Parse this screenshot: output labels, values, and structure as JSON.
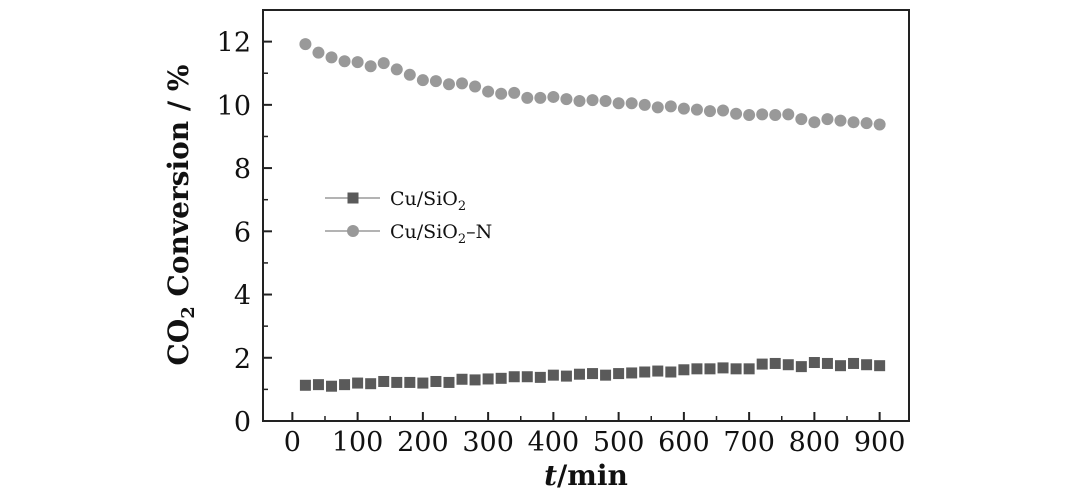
{
  "chart_data": {
    "type": "scatter",
    "title": "",
    "xlabel": {
      "italic": "t",
      "rest": "/min"
    },
    "ylabel": {
      "pre": "CO",
      "sub": "2",
      "post": " Conversion / %"
    },
    "xlim": [
      -45,
      945
    ],
    "ylim": [
      0,
      13
    ],
    "xticks": [
      0,
      100,
      200,
      300,
      400,
      500,
      600,
      700,
      800,
      900
    ],
    "yticks": [
      0,
      2,
      4,
      6,
      8,
      10,
      12
    ],
    "grid": false,
    "legend_position": "center-left",
    "series": [
      {
        "name": {
          "pre": "Cu/SiO",
          "sub": "2",
          "post": ""
        },
        "marker": "square",
        "color": "#5a5a5a",
        "line_color": "#9a9a9a",
        "x": [
          20,
          40,
          60,
          80,
          100,
          120,
          140,
          160,
          180,
          200,
          220,
          240,
          260,
          280,
          300,
          320,
          340,
          360,
          380,
          400,
          420,
          440,
          460,
          480,
          500,
          520,
          540,
          560,
          580,
          600,
          620,
          640,
          660,
          680,
          700,
          720,
          740,
          760,
          780,
          800,
          820,
          840,
          860,
          880,
          900
        ],
        "y": [
          1.13,
          1.15,
          1.1,
          1.15,
          1.2,
          1.18,
          1.25,
          1.22,
          1.22,
          1.2,
          1.25,
          1.22,
          1.32,
          1.3,
          1.33,
          1.35,
          1.4,
          1.4,
          1.38,
          1.45,
          1.42,
          1.48,
          1.5,
          1.45,
          1.5,
          1.52,
          1.55,
          1.58,
          1.55,
          1.62,
          1.65,
          1.65,
          1.68,
          1.65,
          1.65,
          1.8,
          1.82,
          1.78,
          1.72,
          1.85,
          1.82,
          1.75,
          1.82,
          1.78,
          1.75
        ]
      },
      {
        "name": {
          "pre": "Cu/SiO",
          "sub": "2",
          "post": "–N"
        },
        "marker": "circle",
        "color": "#999999",
        "line_color": "#9a9a9a",
        "x": [
          20,
          40,
          60,
          80,
          100,
          120,
          140,
          160,
          180,
          200,
          220,
          240,
          260,
          280,
          300,
          320,
          340,
          360,
          380,
          400,
          420,
          440,
          460,
          480,
          500,
          520,
          540,
          560,
          580,
          600,
          620,
          640,
          660,
          680,
          700,
          720,
          740,
          760,
          780,
          800,
          820,
          840,
          860,
          880,
          900
        ],
        "y": [
          11.92,
          11.65,
          11.5,
          11.38,
          11.35,
          11.22,
          11.32,
          11.12,
          10.95,
          10.78,
          10.75,
          10.65,
          10.68,
          10.58,
          10.42,
          10.35,
          10.38,
          10.22,
          10.22,
          10.25,
          10.18,
          10.12,
          10.15,
          10.12,
          10.05,
          10.05,
          10.0,
          9.92,
          9.95,
          9.88,
          9.85,
          9.8,
          9.82,
          9.72,
          9.68,
          9.7,
          9.68,
          9.7,
          9.55,
          9.45,
          9.55,
          9.5,
          9.45,
          9.42,
          9.38
        ]
      }
    ]
  }
}
